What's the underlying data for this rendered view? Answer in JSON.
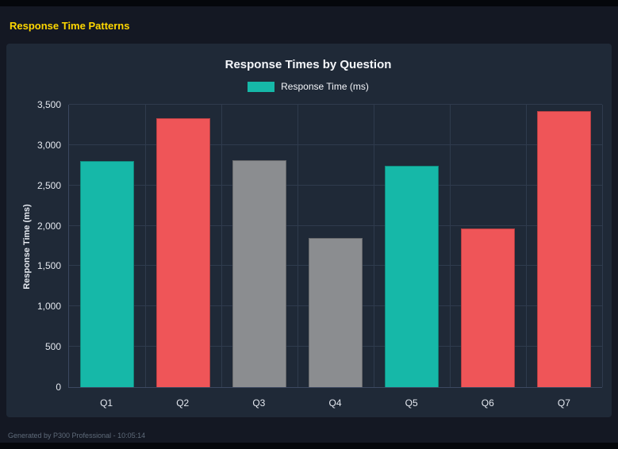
{
  "header": {
    "title": "Response Time Patterns"
  },
  "footer": {
    "text": "Generated by P300 Professional - 10:05:14"
  },
  "chart_data": {
    "type": "bar",
    "title": "Response Times by Question",
    "legend": {
      "label": "Response Time (ms)",
      "position": "top",
      "swatch_color": "#16b8a8"
    },
    "categories": [
      "Q1",
      "Q2",
      "Q3",
      "Q4",
      "Q5",
      "Q6",
      "Q7"
    ],
    "values": [
      2800,
      3330,
      2810,
      1850,
      2740,
      1970,
      3420
    ],
    "bar_colors": [
      "#16b8a8",
      "#ef5558",
      "#8b8d90",
      "#8b8d90",
      "#16b8a8",
      "#ef5558",
      "#ef5558"
    ],
    "xlabel": "",
    "ylabel": "Response Time (ms)",
    "ylim": [
      0,
      3500
    ],
    "yticks": [
      0,
      500,
      1000,
      1500,
      2000,
      2500,
      3000,
      3500
    ],
    "grid": true
  },
  "colors": {
    "page_bg": "#141823",
    "panel_bg": "#1f2937",
    "accent_title": "#ffd700",
    "grid_line": "#2f3b4d",
    "axis_line": "#3c4860",
    "axis_text": "#e4e8ef",
    "title_text": "#f4f6fa",
    "footer_text": "#5f6b7a"
  }
}
